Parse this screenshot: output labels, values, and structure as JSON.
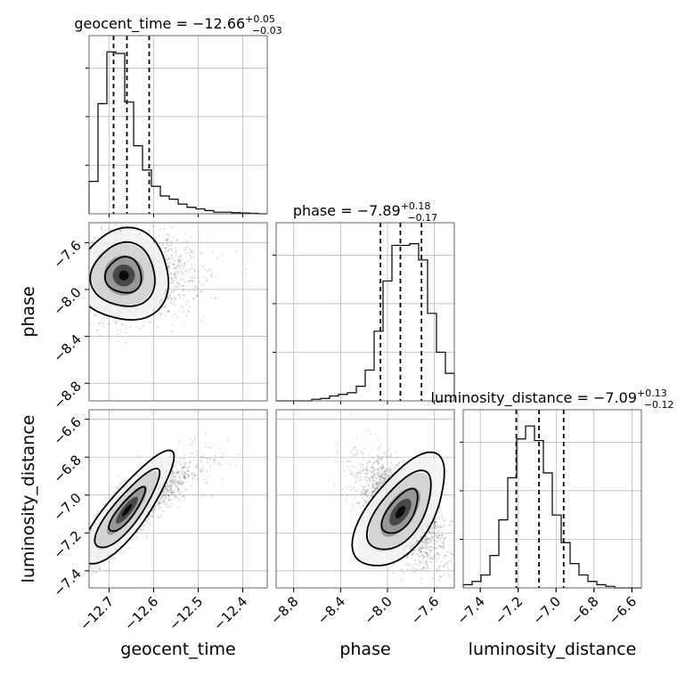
{
  "chart_data": {
    "type": "corner",
    "parameters": [
      {
        "name": "geocent_time",
        "title_main": "geocent_time = −12.66",
        "title_sup": "+0.05",
        "title_sub": "−0.03",
        "median": -12.66,
        "q_low": -12.69,
        "q_high": -12.61,
        "range": [
          -12.745,
          -12.345
        ],
        "ticks": [
          -12.7,
          -12.6,
          -12.5,
          -12.4
        ],
        "tick_labels": [
          "−12.7",
          "−12.6",
          "−12.5",
          "−12.4"
        ],
        "hist": [
          0.2,
          0.68,
          1.0,
          0.99,
          0.69,
          0.42,
          0.27,
          0.17,
          0.11,
          0.09,
          0.06,
          0.04,
          0.03,
          0.02,
          0.01,
          0.01,
          0.007,
          0.005,
          0.003,
          0.0
        ]
      },
      {
        "name": "phase",
        "title_main": "phase = −7.89",
        "title_sup": "+0.18",
        "title_sub": "−0.17",
        "median": -7.89,
        "q_low": -8.06,
        "q_high": -7.71,
        "range": [
          -8.95,
          -7.43
        ],
        "ticks": [
          -8.8,
          -8.4,
          -8.0,
          -7.6
        ],
        "tick_labels": [
          "−8.8",
          "−8.4",
          "−8.0",
          "−7.6"
        ],
        "hist": [
          0.0,
          0.0,
          0.0,
          0.0,
          0.01,
          0.015,
          0.03,
          0.04,
          0.05,
          0.09,
          0.19,
          0.43,
          0.74,
          0.96,
          0.96,
          0.97,
          0.87,
          0.54,
          0.3,
          0.17
        ]
      },
      {
        "name": "luminosity_distance",
        "title_main": "luminosity_distance = −7.09",
        "title_sup": "+0.13",
        "title_sub": "−0.12",
        "median": -7.09,
        "q_low": -7.21,
        "q_high": -6.96,
        "range": [
          -7.49,
          -6.55
        ],
        "ticks": [
          -7.4,
          -7.2,
          -7.0,
          -6.8,
          -6.6
        ],
        "tick_labels": [
          "−7.4",
          "−7.2",
          "−7.0",
          "−6.8",
          "−6.6"
        ],
        "hist": [
          0.02,
          0.04,
          0.08,
          0.2,
          0.42,
          0.68,
          0.92,
          1.0,
          0.91,
          0.71,
          0.45,
          0.28,
          0.15,
          0.08,
          0.04,
          0.02,
          0.01,
          0.0,
          0.0,
          0.0
        ]
      }
    ],
    "hist_ylim": [
      0,
      1.1
    ],
    "pairs": [
      {
        "x": "geocent_time",
        "y": "phase",
        "mean": [
          -12.667,
          -7.88
        ],
        "sd": [
          0.045,
          0.17
        ],
        "corr": 0.0,
        "n_points": 2500
      },
      {
        "x": "geocent_time",
        "y": "luminosity_distance",
        "mean": [
          -12.66,
          -7.08
        ],
        "sd": [
          0.045,
          0.13
        ],
        "corr": 0.85,
        "n_points": 2500
      },
      {
        "x": "phase",
        "y": "luminosity_distance",
        "mean": [
          -7.89,
          -7.09
        ],
        "sd": [
          0.17,
          0.13
        ],
        "corr": -0.6,
        "n_points": 2500
      }
    ],
    "grid": true,
    "line_style": "dashed"
  }
}
